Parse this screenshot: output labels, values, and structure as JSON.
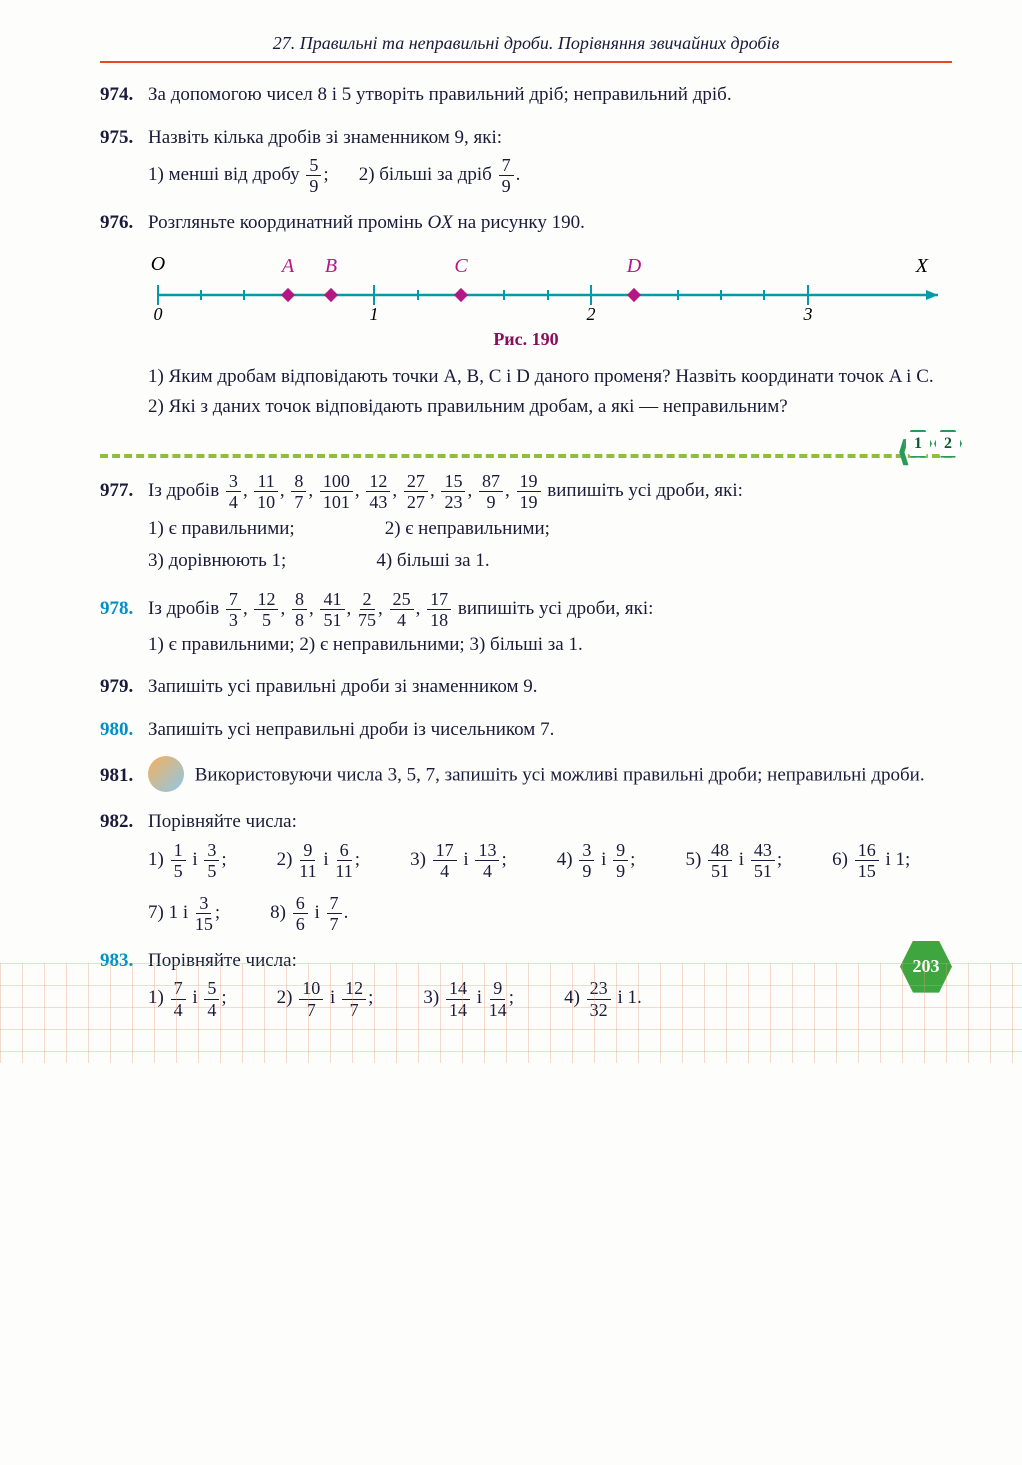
{
  "header": "27. Правильні та неправильні дроби. Порівняння звичайних дробів",
  "page_number": "203",
  "figure_caption": "Рис. 190",
  "divider_markers": [
    "1",
    "2"
  ],
  "problems": {
    "p974": {
      "num": "974.",
      "text": "За допомогою чисел 8 і 5 утворіть правильний дріб; неправильний дріб."
    },
    "p975": {
      "num": "975.",
      "intro": "Назвіть кілька дробів зі знаменником 9, які:",
      "s1_pre": "1) менші від дробу ",
      "s1_frac": {
        "n": "5",
        "d": "9"
      },
      "s2_pre": "2) більші за дріб ",
      "s2_frac": {
        "n": "7",
        "d": "9"
      }
    },
    "p976": {
      "num": "976.",
      "intro": "Розгляньте координатний промінь ",
      "ray": "OX",
      "intro2": " на рисунку 190.",
      "q1": "1) Яким дробам відповідають точки A, B, C і D даного променя? Назвіть координати точок A і C.",
      "q2": "2) Які з даних точок відповідають правильним дробам, а які — неправильним?",
      "line": {
        "labels": {
          "O": "O",
          "A": "A",
          "B": "B",
          "C": "C",
          "D": "D",
          "X": "X"
        },
        "ticks": [
          "0",
          "1",
          "2",
          "3"
        ],
        "major_positions": [
          0,
          1,
          2,
          3
        ],
        "point_positions": {
          "A": 0.6,
          "B": 0.8,
          "C": 1.4,
          "D": 2.2
        },
        "major_color": "#009aa8",
        "line_color": "#009aa8",
        "point_color": "#b41784",
        "total_span": 3.6
      }
    },
    "p977": {
      "num": "977.",
      "pre": "Із дробів ",
      "fracs": [
        {
          "n": "3",
          "d": "4"
        },
        {
          "n": "11",
          "d": "10"
        },
        {
          "n": "8",
          "d": "7"
        },
        {
          "n": "100",
          "d": "101"
        },
        {
          "n": "12",
          "d": "43"
        },
        {
          "n": "27",
          "d": "27"
        },
        {
          "n": "15",
          "d": "23"
        },
        {
          "n": "87",
          "d": "9"
        },
        {
          "n": "19",
          "d": "19"
        }
      ],
      "post": " випишіть усі дроби, які:",
      "subs": [
        "1) є правильними;",
        "2) є неправильними;",
        "3) дорівнюють 1;",
        "4) більші за 1."
      ]
    },
    "p978": {
      "num": "978.",
      "pre": "Із дробів ",
      "fracs": [
        {
          "n": "7",
          "d": "3"
        },
        {
          "n": "12",
          "d": "5"
        },
        {
          "n": "8",
          "d": "8"
        },
        {
          "n": "41",
          "d": "51"
        },
        {
          "n": "2",
          "d": "75"
        },
        {
          "n": "25",
          "d": "4"
        },
        {
          "n": "17",
          "d": "18"
        }
      ],
      "post": " випишіть усі дроби, які:",
      "sub": "1) є правильними; 2) є неправильними; 3) більші за 1."
    },
    "p979": {
      "num": "979.",
      "text": "Запишіть усі правильні дроби зі знаменником 9."
    },
    "p980": {
      "num": "980.",
      "text": "Запишіть усі неправильні дроби із чисельником 7."
    },
    "p981": {
      "num": "981.",
      "text": "Використовуючи числа 3, 5, 7, запишіть усі можливі правильні дроби; неправильні дроби."
    },
    "p982": {
      "num": "982.",
      "intro": "Порівняйте числа:",
      "items": [
        {
          "label": "1) ",
          "a": {
            "n": "1",
            "d": "5"
          },
          "mid": " і ",
          "b": {
            "n": "3",
            "d": "5"
          },
          "end": ";"
        },
        {
          "label": "2) ",
          "a": {
            "n": "9",
            "d": "11"
          },
          "mid": " і ",
          "b": {
            "n": "6",
            "d": "11"
          },
          "end": ";"
        },
        {
          "label": "3) ",
          "a": {
            "n": "17",
            "d": "4"
          },
          "mid": " і ",
          "b": {
            "n": "13",
            "d": "4"
          },
          "end": ";"
        },
        {
          "label": "4) ",
          "a": {
            "n": "3",
            "d": "9"
          },
          "mid": " і ",
          "b": {
            "n": "9",
            "d": "9"
          },
          "end": ";"
        },
        {
          "label": "5) ",
          "a": {
            "n": "48",
            "d": "51"
          },
          "mid": " і ",
          "b": {
            "n": "43",
            "d": "51"
          },
          "end": ";"
        },
        {
          "label": "6) ",
          "a": {
            "n": "16",
            "d": "15"
          },
          "mid": " і 1;",
          "b": null,
          "end": ""
        },
        {
          "label": "7) 1 і ",
          "a": {
            "n": "3",
            "d": "15"
          },
          "mid": ";",
          "b": null,
          "end": ""
        },
        {
          "label": "8) ",
          "a": {
            "n": "6",
            "d": "6"
          },
          "mid": " і ",
          "b": {
            "n": "7",
            "d": "7"
          },
          "end": "."
        }
      ]
    },
    "p983": {
      "num": "983.",
      "intro": "Порівняйте числа:",
      "items": [
        {
          "label": "1) ",
          "a": {
            "n": "7",
            "d": "4"
          },
          "mid": " і ",
          "b": {
            "n": "5",
            "d": "4"
          },
          "end": ";"
        },
        {
          "label": "2) ",
          "a": {
            "n": "10",
            "d": "7"
          },
          "mid": " і ",
          "b": {
            "n": "12",
            "d": "7"
          },
          "end": ";"
        },
        {
          "label": "3) ",
          "a": {
            "n": "14",
            "d": "14"
          },
          "mid": " і ",
          "b": {
            "n": "9",
            "d": "14"
          },
          "end": ";"
        },
        {
          "labelampersand firstly chosen": "",
          "label": "4) ",
          "a": {
            "n": "23",
            "d": "32"
          },
          "mid": " і 1.",
          "b": null,
          "end": ""
        }
      ]
    }
  }
}
